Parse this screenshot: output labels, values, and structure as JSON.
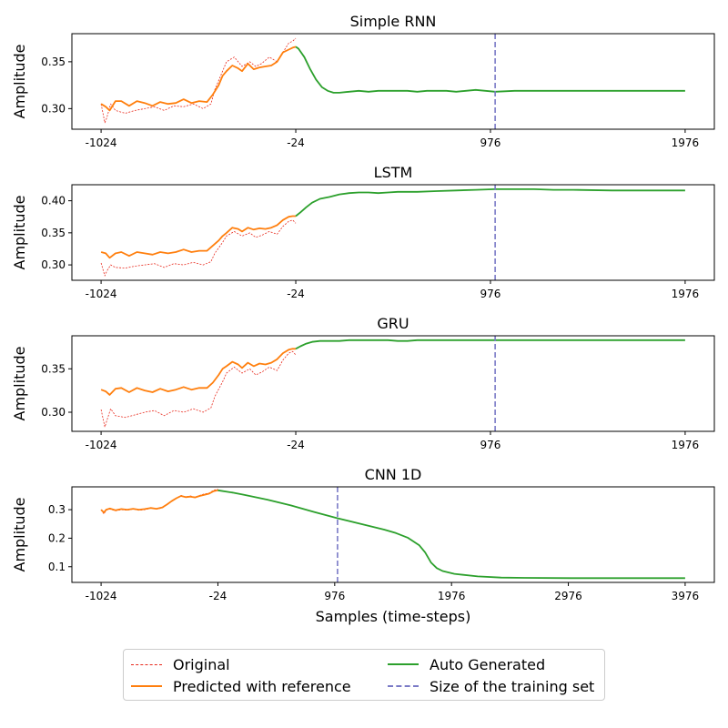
{
  "figure": {
    "xlabel": "Samples (time-steps)",
    "ylabel": "Amplitude"
  },
  "colors": {
    "original": "#e8291c",
    "predicted": "#ff7f0e",
    "generated": "#2ca02c",
    "training": "#7a7ac6"
  },
  "legend": {
    "original": "Original",
    "predicted": "Predicted with reference",
    "generated": "Auto Generated",
    "training": "Size of the training set"
  },
  "chart_data": [
    {
      "type": "line",
      "title": "Simple RNN",
      "xlim": [
        -1024,
        1976
      ],
      "ylim": [
        0.278,
        0.38
      ],
      "xticks": [
        -1024,
        -24,
        976,
        1976
      ],
      "yticks": [
        0.3,
        0.35
      ],
      "ytick_labels": [
        "0.30",
        "0.35"
      ],
      "vline_x": 1000,
      "series": [
        {
          "name": "Original",
          "style": "dashed",
          "x": [
            -1024,
            -1005,
            -995,
            -975,
            -950,
            -900,
            -850,
            -800,
            -750,
            -700,
            -650,
            -600,
            -550,
            -500,
            -460,
            -440,
            -400,
            -380,
            -340,
            -300,
            -260,
            -230,
            -200,
            -160,
            -120,
            -90,
            -60,
            -40,
            -24
          ],
          "y": [
            0.305,
            0.285,
            0.29,
            0.305,
            0.298,
            0.295,
            0.298,
            0.3,
            0.302,
            0.298,
            0.303,
            0.302,
            0.305,
            0.3,
            0.305,
            0.32,
            0.34,
            0.35,
            0.355,
            0.345,
            0.35,
            0.345,
            0.348,
            0.355,
            0.35,
            0.36,
            0.37,
            0.372,
            0.375
          ]
        },
        {
          "name": "Predicted with reference",
          "style": "solid",
          "x": [
            -1024,
            -1000,
            -980,
            -950,
            -920,
            -880,
            -840,
            -800,
            -760,
            -720,
            -680,
            -640,
            -600,
            -560,
            -520,
            -480,
            -450,
            -420,
            -400,
            -380,
            -350,
            -320,
            -300,
            -270,
            -240,
            -210,
            -180,
            -150,
            -120,
            -90,
            -60,
            -40,
            -24
          ],
          "y": [
            0.305,
            0.302,
            0.298,
            0.308,
            0.308,
            0.303,
            0.308,
            0.306,
            0.303,
            0.307,
            0.305,
            0.306,
            0.31,
            0.306,
            0.308,
            0.307,
            0.315,
            0.325,
            0.335,
            0.34,
            0.346,
            0.343,
            0.34,
            0.348,
            0.342,
            0.344,
            0.345,
            0.346,
            0.35,
            0.36,
            0.363,
            0.365,
            0.366
          ]
        },
        {
          "name": "Auto Generated",
          "style": "solid",
          "x": [
            -24,
            -10,
            20,
            50,
            80,
            110,
            140,
            170,
            200,
            250,
            300,
            350,
            400,
            450,
            500,
            550,
            600,
            650,
            700,
            750,
            800,
            850,
            900,
            950,
            1000,
            1100,
            1200,
            1400,
            1600,
            1800,
            1976
          ],
          "y": [
            0.366,
            0.364,
            0.355,
            0.342,
            0.331,
            0.323,
            0.319,
            0.317,
            0.317,
            0.318,
            0.319,
            0.318,
            0.319,
            0.319,
            0.319,
            0.319,
            0.318,
            0.319,
            0.319,
            0.319,
            0.318,
            0.319,
            0.32,
            0.319,
            0.318,
            0.319,
            0.319,
            0.319,
            0.319,
            0.319,
            0.319
          ]
        }
      ]
    },
    {
      "type": "line",
      "title": "LSTM",
      "xlim": [
        -1024,
        1976
      ],
      "ylim": [
        0.276,
        0.425
      ],
      "xticks": [
        -1024,
        -24,
        976,
        1976
      ],
      "yticks": [
        0.3,
        0.35,
        0.4
      ],
      "ytick_labels": [
        "0.30",
        "0.35",
        "0.40"
      ],
      "vline_x": 1000,
      "series": [
        {
          "name": "Original",
          "style": "dashed",
          "x": [
            -1024,
            -1005,
            -995,
            -975,
            -950,
            -900,
            -850,
            -800,
            -750,
            -700,
            -650,
            -600,
            -550,
            -500,
            -460,
            -440,
            -400,
            -380,
            -340,
            -300,
            -260,
            -230,
            -200,
            -160,
            -120,
            -90,
            -60,
            -40,
            -24
          ],
          "y": [
            0.303,
            0.283,
            0.29,
            0.3,
            0.296,
            0.295,
            0.298,
            0.3,
            0.302,
            0.296,
            0.302,
            0.3,
            0.304,
            0.3,
            0.305,
            0.318,
            0.335,
            0.345,
            0.352,
            0.345,
            0.35,
            0.343,
            0.346,
            0.352,
            0.348,
            0.36,
            0.368,
            0.37,
            0.365
          ]
        },
        {
          "name": "Predicted with reference",
          "style": "solid",
          "x": [
            -1024,
            -1000,
            -980,
            -950,
            -920,
            -880,
            -840,
            -800,
            -760,
            -720,
            -680,
            -640,
            -600,
            -560,
            -520,
            -480,
            -450,
            -420,
            -400,
            -380,
            -350,
            -320,
            -300,
            -270,
            -240,
            -210,
            -180,
            -150,
            -120,
            -90,
            -60,
            -40,
            -24
          ],
          "y": [
            0.32,
            0.318,
            0.311,
            0.318,
            0.32,
            0.314,
            0.32,
            0.318,
            0.316,
            0.32,
            0.318,
            0.32,
            0.324,
            0.32,
            0.322,
            0.322,
            0.33,
            0.338,
            0.345,
            0.35,
            0.358,
            0.356,
            0.352,
            0.358,
            0.355,
            0.357,
            0.356,
            0.358,
            0.362,
            0.37,
            0.375,
            0.376,
            0.376
          ]
        },
        {
          "name": "Auto Generated",
          "style": "solid",
          "x": [
            -24,
            0,
            30,
            60,
            100,
            150,
            200,
            250,
            300,
            350,
            400,
            450,
            500,
            550,
            600,
            700,
            800,
            900,
            1000,
            1100,
            1200,
            1300,
            1400,
            1600,
            1800,
            1976
          ],
          "y": [
            0.376,
            0.382,
            0.39,
            0.397,
            0.403,
            0.406,
            0.41,
            0.412,
            0.413,
            0.413,
            0.412,
            0.413,
            0.414,
            0.414,
            0.414,
            0.415,
            0.416,
            0.417,
            0.418,
            0.418,
            0.418,
            0.417,
            0.417,
            0.416,
            0.416,
            0.416
          ]
        }
      ]
    },
    {
      "type": "line",
      "title": "GRU",
      "xlim": [
        -1024,
        1976
      ],
      "ylim": [
        0.278,
        0.388
      ],
      "xticks": [
        -1024,
        -24,
        976,
        1976
      ],
      "yticks": [
        0.3,
        0.35
      ],
      "ytick_labels": [
        "0.30",
        "0.35"
      ],
      "vline_x": 1000,
      "series": [
        {
          "name": "Original",
          "style": "dashed",
          "x": [
            -1024,
            -1005,
            -995,
            -975,
            -950,
            -900,
            -850,
            -800,
            -750,
            -700,
            -650,
            -600,
            -550,
            -500,
            -460,
            -440,
            -400,
            -380,
            -340,
            -300,
            -260,
            -230,
            -200,
            -160,
            -120,
            -90,
            -60,
            -40,
            -24
          ],
          "y": [
            0.303,
            0.283,
            0.29,
            0.304,
            0.296,
            0.294,
            0.297,
            0.3,
            0.302,
            0.296,
            0.302,
            0.3,
            0.304,
            0.3,
            0.305,
            0.318,
            0.335,
            0.345,
            0.352,
            0.345,
            0.35,
            0.343,
            0.346,
            0.352,
            0.348,
            0.36,
            0.368,
            0.37,
            0.366
          ]
        },
        {
          "name": "Predicted with reference",
          "style": "solid",
          "x": [
            -1024,
            -1000,
            -980,
            -950,
            -920,
            -880,
            -840,
            -800,
            -760,
            -720,
            -680,
            -640,
            -600,
            -560,
            -520,
            -480,
            -450,
            -420,
            -400,
            -380,
            -350,
            -320,
            -300,
            -270,
            -240,
            -210,
            -180,
            -150,
            -120,
            -90,
            -60,
            -40,
            -24
          ],
          "y": [
            0.326,
            0.324,
            0.32,
            0.327,
            0.328,
            0.323,
            0.328,
            0.325,
            0.323,
            0.327,
            0.324,
            0.326,
            0.329,
            0.326,
            0.328,
            0.328,
            0.334,
            0.343,
            0.35,
            0.353,
            0.358,
            0.355,
            0.351,
            0.357,
            0.353,
            0.356,
            0.355,
            0.357,
            0.361,
            0.368,
            0.372,
            0.373,
            0.373
          ]
        },
        {
          "name": "Auto Generated",
          "style": "solid",
          "x": [
            -24,
            0,
            30,
            60,
            100,
            150,
            200,
            250,
            300,
            350,
            400,
            450,
            500,
            550,
            600,
            700,
            800,
            900,
            1000,
            1100,
            1200,
            1400,
            1600,
            1800,
            1976
          ],
          "y": [
            0.373,
            0.376,
            0.379,
            0.381,
            0.382,
            0.382,
            0.382,
            0.383,
            0.383,
            0.383,
            0.383,
            0.383,
            0.382,
            0.382,
            0.383,
            0.383,
            0.383,
            0.383,
            0.383,
            0.383,
            0.383,
            0.383,
            0.383,
            0.383,
            0.383
          ]
        }
      ]
    },
    {
      "type": "line",
      "title": "CNN 1D",
      "xlim": [
        -1024,
        3976
      ],
      "ylim": [
        0.045,
        0.38
      ],
      "xticks": [
        -1024,
        -24,
        976,
        1976,
        2976,
        3976
      ],
      "yticks": [
        0.1,
        0.2,
        0.3
      ],
      "ytick_labels": [
        "0.1",
        "0.2",
        "0.3"
      ],
      "vline_x": 1000,
      "series": [
        {
          "name": "Original",
          "style": "dashed",
          "x": [
            -1024,
            -1000,
            -980,
            -950,
            -900,
            -850,
            -800,
            -750,
            -700,
            -650,
            -600,
            -550,
            -500,
            -460,
            -420,
            -380,
            -340,
            -300,
            -260,
            -220,
            -180,
            -140,
            -100,
            -60,
            -24
          ],
          "y": [
            0.3,
            0.285,
            0.298,
            0.302,
            0.296,
            0.3,
            0.298,
            0.302,
            0.298,
            0.3,
            0.305,
            0.302,
            0.306,
            0.318,
            0.33,
            0.34,
            0.35,
            0.345,
            0.348,
            0.344,
            0.35,
            0.355,
            0.358,
            0.368,
            0.372
          ]
        },
        {
          "name": "Predicted with reference",
          "style": "solid",
          "x": [
            -1024,
            -1000,
            -980,
            -950,
            -900,
            -850,
            -800,
            -750,
            -700,
            -650,
            -600,
            -550,
            -500,
            -460,
            -420,
            -380,
            -340,
            -300,
            -260,
            -220,
            -180,
            -140,
            -100,
            -60,
            -24
          ],
          "y": [
            0.3,
            0.29,
            0.3,
            0.304,
            0.298,
            0.302,
            0.3,
            0.303,
            0.3,
            0.302,
            0.306,
            0.303,
            0.308,
            0.318,
            0.33,
            0.34,
            0.348,
            0.344,
            0.346,
            0.343,
            0.348,
            0.352,
            0.356,
            0.365,
            0.368
          ]
        },
        {
          "name": "Auto Generated",
          "style": "solid",
          "x": [
            -24,
            100,
            200,
            400,
            600,
            800,
            1000,
            1200,
            1400,
            1500,
            1600,
            1700,
            1750,
            1800,
            1850,
            1900,
            2000,
            2200,
            2400,
            2600,
            3000,
            3500,
            3976
          ],
          "y": [
            0.368,
            0.36,
            0.352,
            0.335,
            0.315,
            0.292,
            0.27,
            0.25,
            0.23,
            0.218,
            0.202,
            0.175,
            0.15,
            0.115,
            0.095,
            0.085,
            0.075,
            0.066,
            0.062,
            0.061,
            0.06,
            0.06,
            0.06
          ]
        }
      ]
    }
  ]
}
